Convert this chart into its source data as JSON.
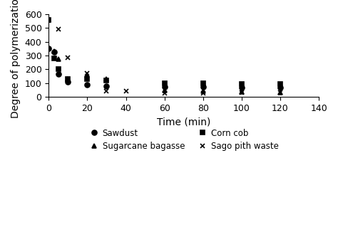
{
  "title": "",
  "xlabel": "Time (min)",
  "ylabel": "Degree of polymerization",
  "xlim": [
    0,
    140
  ],
  "ylim": [
    0,
    600
  ],
  "xticks": [
    0,
    20,
    40,
    60,
    80,
    100,
    120,
    140
  ],
  "yticks": [
    0,
    100,
    200,
    300,
    400,
    500,
    600
  ],
  "series": [
    {
      "label": "Sawdust",
      "marker": "o",
      "x": [
        0,
        3,
        5,
        10,
        20,
        30,
        60,
        80,
        100,
        120
      ],
      "y": [
        350,
        325,
        165,
        110,
        88,
        80,
        75,
        73,
        70,
        70
      ]
    },
    {
      "label": "Sugarcane bagasse",
      "marker": "^",
      "x": [
        0,
        3,
        5,
        10,
        20,
        30,
        60,
        80,
        100,
        120
      ],
      "y": [
        560,
        330,
        275,
        130,
        160,
        130,
        50,
        40,
        35,
        30
      ]
    },
    {
      "label": "Corn cob",
      "marker": "s",
      "x": [
        0,
        3,
        5,
        10,
        20,
        30,
        60,
        80,
        100,
        120
      ],
      "y": [
        560,
        280,
        200,
        130,
        130,
        120,
        100,
        98,
        95,
        95
      ]
    },
    {
      "label": "Sago pith waste",
      "marker": "x",
      "x": [
        5,
        10,
        20,
        30,
        40,
        60,
        80,
        100,
        120
      ],
      "y": [
        490,
        285,
        170,
        45,
        42,
        28,
        28,
        33,
        30
      ]
    }
  ],
  "background_color": "#ffffff",
  "markersize": 5,
  "linewidth": 1.2,
  "color": "#000000"
}
